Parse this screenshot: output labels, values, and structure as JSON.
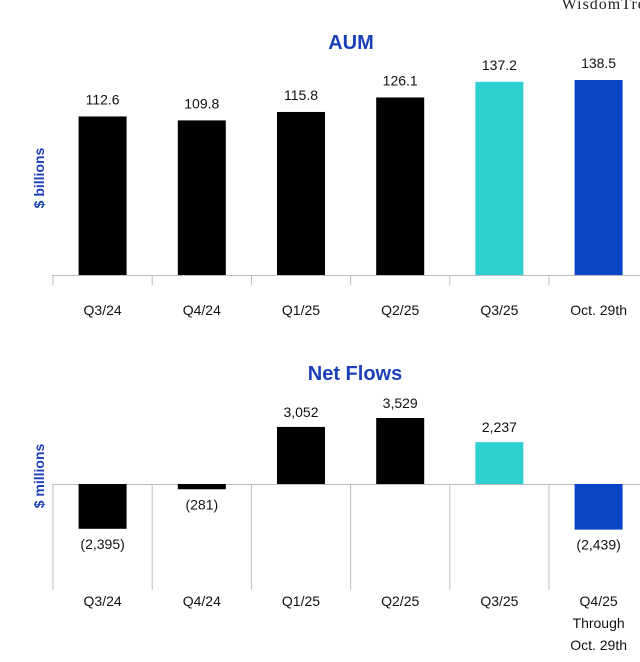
{
  "brand": "WisdomTree",
  "chart_data": [
    {
      "type": "bar",
      "title": "AUM",
      "ylabel": "$ billions",
      "categories": [
        "Q3/24",
        "Q4/24",
        "Q1/25",
        "Q2/25",
        "Q3/25",
        "Oct. 29th"
      ],
      "values": [
        112.6,
        109.8,
        115.8,
        126.1,
        137.2,
        138.5
      ],
      "value_labels": [
        "112.6",
        "109.8",
        "115.8",
        "126.1",
        "137.2",
        "138.5"
      ],
      "colors": [
        "#000000",
        "#000000",
        "#000000",
        "#000000",
        "#2ecfd0",
        "#0a45c8"
      ],
      "ylim": [
        0,
        145
      ],
      "grid": false
    },
    {
      "type": "bar",
      "title": "Net Flows",
      "ylabel": "$ millions",
      "categories": [
        "Q3/24",
        "Q4/24",
        "Q1/25",
        "Q2/25",
        "Q3/25",
        "Q4/25\nThrough\nOct. 29th"
      ],
      "values": [
        -2395,
        -281,
        3052,
        3529,
        2237,
        -2439
      ],
      "value_labels": [
        "(2,395)",
        "(281)",
        "3,052",
        "3,529",
        "2,237",
        "(2,439)"
      ],
      "colors": [
        "#000000",
        "#000000",
        "#000000",
        "#000000",
        "#2ecfd0",
        "#0a45c8"
      ],
      "ylim": [
        -2600,
        3800
      ],
      "grid": false
    }
  ]
}
